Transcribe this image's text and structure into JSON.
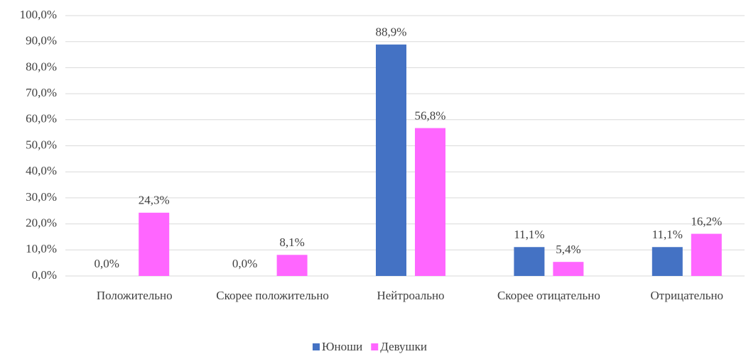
{
  "chart_data": {
    "type": "bar",
    "categories": [
      "Положительно",
      "Скорее положительно",
      "Нейтроально",
      "Скорее отицательно",
      "Отрицательно"
    ],
    "series": [
      {
        "name": "Юноши",
        "color": "#4472c4",
        "values": [
          0,
          0,
          88.9,
          11.1,
          11.1
        ],
        "value_labels": [
          "0,0%",
          "0,0%",
          "88,9%",
          "11,1%",
          "11,1%"
        ]
      },
      {
        "name": "Девушки",
        "color": "#ff66ff",
        "values": [
          24.3,
          8.1,
          56.8,
          5.4,
          16.2
        ],
        "value_labels": [
          "24,3%",
          "8,1%",
          "56,8%",
          "5,4%",
          "16,2%"
        ]
      }
    ],
    "ylim": [
      0,
      100
    ],
    "yticks": [
      {
        "value": 0,
        "label": "0,0%"
      },
      {
        "value": 10,
        "label": "10,0%"
      },
      {
        "value": 20,
        "label": "20,0%"
      },
      {
        "value": 30,
        "label": "30,0%"
      },
      {
        "value": 40,
        "label": "40,0%"
      },
      {
        "value": 50,
        "label": "50,0%"
      },
      {
        "value": 60,
        "label": "60,0%"
      },
      {
        "value": 70,
        "label": "70,0%"
      },
      {
        "value": 80,
        "label": "80,0%"
      },
      {
        "value": 90,
        "label": "90,0%"
      },
      {
        "value": 100,
        "label": "100,0%"
      }
    ],
    "grid": true,
    "legend": "bottom"
  }
}
